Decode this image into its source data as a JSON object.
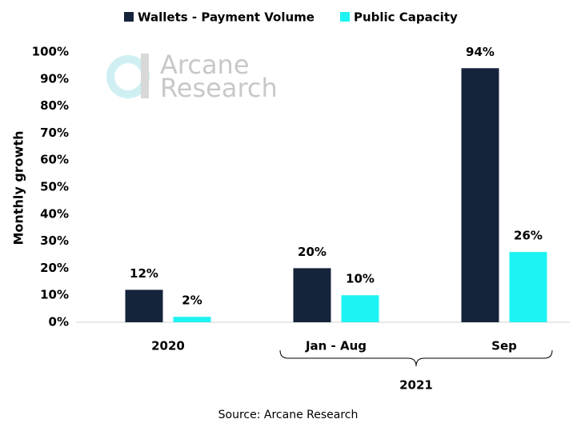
{
  "chart_data": {
    "type": "bar",
    "categories": [
      "2020",
      "Jan - Aug",
      "Sep"
    ],
    "group_label": "2021",
    "series": [
      {
        "name": "Wallets - Payment Volume",
        "color": "#15243a",
        "values": [
          12,
          20,
          94
        ],
        "value_labels": [
          "12%",
          "20%",
          "94%"
        ]
      },
      {
        "name": "Public Capacity",
        "color": "#1ef3f3",
        "values": [
          2,
          10,
          26
        ],
        "value_labels": [
          "2%",
          "10%",
          "26%"
        ]
      }
    ],
    "ylabel": "Monthly growth",
    "ylim": [
      0,
      100
    ],
    "yticks": [
      {
        "value": 0,
        "label": "0%"
      },
      {
        "value": 10,
        "label": "10%"
      },
      {
        "value": 20,
        "label": "20%"
      },
      {
        "value": 30,
        "label": "30%"
      },
      {
        "value": 40,
        "label": "40%"
      },
      {
        "value": 50,
        "label": "50%"
      },
      {
        "value": 60,
        "label": "60%"
      },
      {
        "value": 70,
        "label": "70%"
      },
      {
        "value": 80,
        "label": "80%"
      },
      {
        "value": 90,
        "label": "90%"
      },
      {
        "value": 100,
        "label": "100%"
      }
    ],
    "legend": "top",
    "watermark": [
      "Arcane",
      "Research"
    ],
    "source": "Source: Arcane Research"
  }
}
